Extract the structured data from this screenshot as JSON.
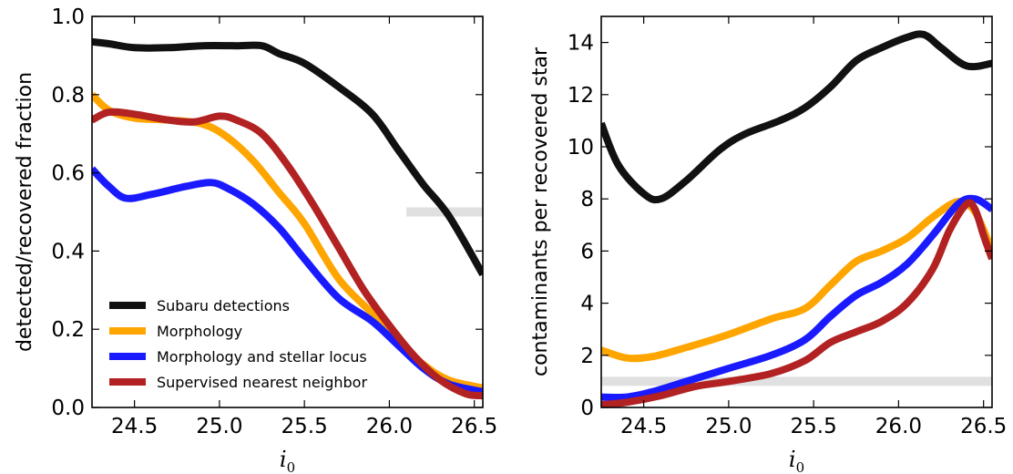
{
  "chart_data": [
    {
      "type": "line",
      "xlabel": "i",
      "xlabel_sub": "0",
      "ylabel": "detected/recovered fraction",
      "xlim": [
        24.25,
        26.55
      ],
      "ylim": [
        0,
        1.0
      ],
      "xticks": [
        "24.5",
        "25.0",
        "25.5",
        "26.0",
        "26.5"
      ],
      "yticks": [
        "0.0",
        "0.2",
        "0.4",
        "0.6",
        "0.8",
        "1.0"
      ],
      "legend_position": "lower-left",
      "reference_band": {
        "y": 0.5,
        "x_from": 26.1,
        "x_to": 26.55,
        "color": "#e0e0e0"
      },
      "series": [
        {
          "name": "Subaru detections",
          "color": "#111111",
          "x": [
            24.25,
            24.35,
            24.5,
            24.7,
            24.9,
            25.1,
            25.25,
            25.35,
            25.5,
            25.7,
            25.9,
            26.05,
            26.2,
            26.35,
            26.55
          ],
          "y": [
            0.935,
            0.93,
            0.92,
            0.92,
            0.925,
            0.925,
            0.925,
            0.905,
            0.88,
            0.82,
            0.75,
            0.66,
            0.57,
            0.49,
            0.34
          ]
        },
        {
          "name": "Morphology",
          "color": "#ffa500",
          "x": [
            24.25,
            24.35,
            24.5,
            24.7,
            24.9,
            25.05,
            25.2,
            25.35,
            25.5,
            25.7,
            25.9,
            26.05,
            26.2,
            26.35,
            26.55
          ],
          "y": [
            0.8,
            0.76,
            0.74,
            0.735,
            0.725,
            0.69,
            0.63,
            0.55,
            0.47,
            0.33,
            0.24,
            0.17,
            0.11,
            0.07,
            0.05
          ]
        },
        {
          "name": "Morphology and stellar locus",
          "color": "#1a1aff",
          "x": [
            24.25,
            24.35,
            24.45,
            24.6,
            24.8,
            24.95,
            25.05,
            25.2,
            25.35,
            25.5,
            25.7,
            25.9,
            26.05,
            26.2,
            26.35,
            26.55
          ],
          "y": [
            0.61,
            0.565,
            0.535,
            0.545,
            0.565,
            0.575,
            0.56,
            0.52,
            0.46,
            0.38,
            0.28,
            0.22,
            0.16,
            0.1,
            0.06,
            0.04
          ]
        },
        {
          "name": "Supervised nearest neighbor",
          "color": "#b22222",
          "x": [
            24.25,
            24.35,
            24.5,
            24.7,
            24.85,
            25.0,
            25.1,
            25.25,
            25.4,
            25.55,
            25.7,
            25.85,
            26.0,
            26.15,
            26.3,
            26.45,
            26.55
          ],
          "y": [
            0.735,
            0.755,
            0.75,
            0.735,
            0.73,
            0.745,
            0.735,
            0.7,
            0.62,
            0.52,
            0.41,
            0.3,
            0.21,
            0.13,
            0.07,
            0.035,
            0.03
          ]
        }
      ]
    },
    {
      "type": "line",
      "xlabel": "i",
      "xlabel_sub": "0",
      "ylabel": "contaminants per recovered star",
      "xlim": [
        24.25,
        26.55
      ],
      "ylim": [
        0,
        15
      ],
      "xticks": [
        "24.5",
        "25.0",
        "25.5",
        "26.0",
        "26.5"
      ],
      "yticks": [
        "0",
        "2",
        "4",
        "6",
        "8",
        "10",
        "12",
        "14"
      ],
      "reference_band": {
        "y": 1.0,
        "x_from": 24.25,
        "x_to": 26.55,
        "color": "#e0e0e0"
      },
      "series": [
        {
          "name": "Subaru detections",
          "color": "#111111",
          "x": [
            24.25,
            24.35,
            24.5,
            24.6,
            24.75,
            24.95,
            25.1,
            25.3,
            25.45,
            25.6,
            25.75,
            25.9,
            26.05,
            26.15,
            26.25,
            26.4,
            26.55
          ],
          "y": [
            10.9,
            9.3,
            8.2,
            8.0,
            8.7,
            9.9,
            10.5,
            11.0,
            11.5,
            12.3,
            13.3,
            13.8,
            14.2,
            14.3,
            13.8,
            13.1,
            13.2
          ]
        },
        {
          "name": "Morphology",
          "color": "#ffa500",
          "x": [
            24.25,
            24.4,
            24.55,
            24.75,
            25.0,
            25.25,
            25.45,
            25.6,
            25.75,
            25.9,
            26.05,
            26.2,
            26.35,
            26.45,
            26.55
          ],
          "y": [
            2.2,
            1.9,
            1.95,
            2.3,
            2.8,
            3.4,
            3.8,
            4.7,
            5.6,
            6.0,
            6.5,
            7.3,
            7.9,
            7.5,
            6.0
          ]
        },
        {
          "name": "Morphology and stellar locus",
          "color": "#1a1aff",
          "x": [
            24.25,
            24.4,
            24.55,
            24.75,
            25.0,
            25.25,
            25.45,
            25.6,
            25.75,
            25.9,
            26.05,
            26.2,
            26.35,
            26.45,
            26.55
          ],
          "y": [
            0.4,
            0.4,
            0.6,
            1.0,
            1.5,
            2.0,
            2.6,
            3.5,
            4.3,
            4.8,
            5.5,
            6.6,
            7.8,
            8.0,
            7.6
          ]
        },
        {
          "name": "Supervised nearest neighbor",
          "color": "#b22222",
          "x": [
            24.25,
            24.4,
            24.6,
            24.8,
            25.0,
            25.25,
            25.45,
            25.6,
            25.75,
            25.9,
            26.05,
            26.2,
            26.3,
            26.4,
            26.45,
            26.5,
            26.55
          ],
          "y": [
            0.1,
            0.2,
            0.45,
            0.8,
            1.0,
            1.3,
            1.8,
            2.5,
            2.9,
            3.3,
            4.0,
            5.3,
            6.8,
            7.8,
            7.6,
            6.6,
            5.7
          ]
        }
      ]
    }
  ]
}
